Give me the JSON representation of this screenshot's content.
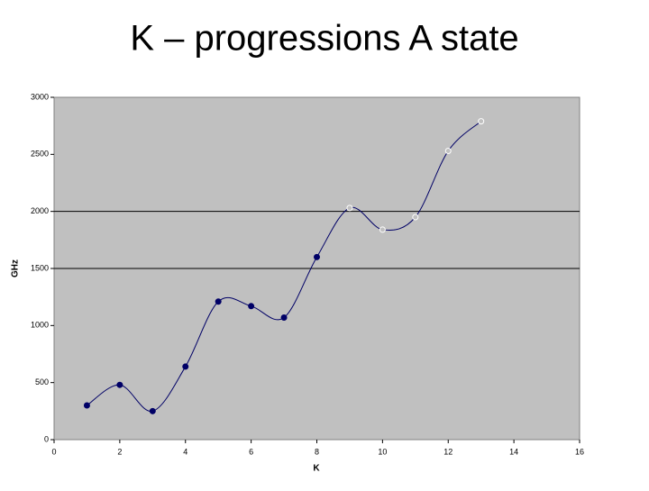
{
  "chart_data": {
    "type": "scatter",
    "title": "K – progressions A state",
    "xlabel": "K",
    "ylabel": "GHz",
    "xlim": [
      0,
      16
    ],
    "xticks": [
      0,
      2,
      4,
      6,
      8,
      10,
      12,
      14,
      16
    ],
    "ylim": [
      0,
      3000
    ],
    "yticks": [
      0,
      500,
      1000,
      1500,
      2000,
      2500,
      3000
    ],
    "hlines": [
      1500,
      2000
    ],
    "smooth_line": true,
    "plot_background": "#c0c0c0",
    "series": [
      {
        "color": "#000066",
        "x": [
          1,
          2,
          3,
          4,
          5,
          6,
          7,
          8,
          9,
          10,
          11,
          12,
          13
        ],
        "values": [
          300,
          480,
          250,
          640,
          1210,
          1170,
          1070,
          1600,
          2030,
          1840,
          1950,
          2530,
          2790
        ],
        "marker_styles": [
          "filled",
          "filled",
          "filled",
          "filled",
          "filled",
          "filled",
          "filled",
          "filled",
          "open",
          "open",
          "open",
          "open",
          "open"
        ]
      }
    ]
  }
}
